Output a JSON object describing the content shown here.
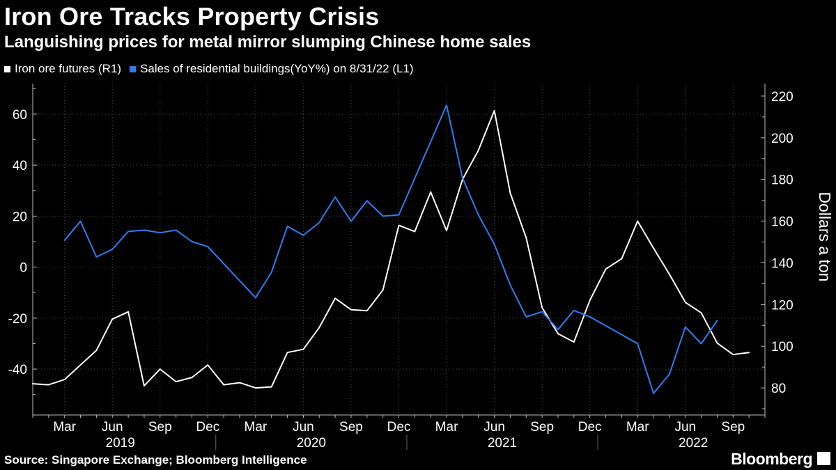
{
  "chart_data": {
    "type": "line",
    "title": "Iron Ore Tracks Property Crisis",
    "subtitle": "Languishing prices for metal mirror slumping Chinese home sales",
    "source": "Source: Singapore Exchange; Bloomberg Intelligence",
    "brand": "Bloomberg",
    "right_axis_label": "Dollars a ton",
    "left_axis": {
      "ylim": [
        -58,
        72
      ],
      "ticks": [
        60,
        40,
        20,
        0,
        -20,
        -40
      ],
      "labels": [
        "60",
        "40",
        "20",
        "0",
        "-20",
        "-40"
      ]
    },
    "right_axis": {
      "ylim": [
        67,
        226
      ],
      "ticks": [
        220,
        200,
        180,
        160,
        140,
        120,
        100,
        80
      ],
      "labels": [
        "220",
        "200",
        "180",
        "160",
        "140",
        "120",
        "100",
        "80"
      ]
    },
    "x_axis": {
      "range": [
        0,
        46
      ],
      "month_ticks": [
        {
          "m": 2,
          "label": "Mar"
        },
        {
          "m": 5,
          "label": "Jun"
        },
        {
          "m": 8,
          "label": "Sep"
        },
        {
          "m": 11,
          "label": "Dec"
        },
        {
          "m": 14,
          "label": "Mar"
        },
        {
          "m": 17,
          "label": "Jun"
        },
        {
          "m": 20,
          "label": "Sep"
        },
        {
          "m": 23,
          "label": "Dec"
        },
        {
          "m": 26,
          "label": "Mar"
        },
        {
          "m": 29,
          "label": "Jun"
        },
        {
          "m": 32,
          "label": "Sep"
        },
        {
          "m": 35,
          "label": "Dec"
        },
        {
          "m": 38,
          "label": "Mar"
        },
        {
          "m": 41,
          "label": "Jun"
        },
        {
          "m": 44,
          "label": "Sep"
        }
      ],
      "years": [
        {
          "m": 5.5,
          "label": "2019"
        },
        {
          "m": 17.5,
          "label": "2020"
        },
        {
          "m": 29.5,
          "label": "2021"
        },
        {
          "m": 41.5,
          "label": "2022"
        }
      ],
      "year_dividers": [
        11.5,
        23.5,
        35.5
      ]
    },
    "series": [
      {
        "name": "Iron ore futures (R1)",
        "axis": "right",
        "color": "#ffffff",
        "points": [
          [
            0,
            82
          ],
          [
            1,
            81.5
          ],
          [
            2,
            84
          ],
          [
            3,
            91
          ],
          [
            4,
            98
          ],
          [
            5,
            113
          ],
          [
            6,
            116.5
          ],
          [
            7,
            81
          ],
          [
            8,
            89
          ],
          [
            9,
            83
          ],
          [
            10,
            85
          ],
          [
            11,
            91
          ],
          [
            12,
            81.5
          ],
          [
            13,
            82.5
          ],
          [
            14,
            80
          ],
          [
            15,
            80.5
          ],
          [
            16,
            97
          ],
          [
            17,
            98.5
          ],
          [
            18,
            109
          ],
          [
            19,
            123
          ],
          [
            20,
            117.5
          ],
          [
            21,
            117
          ],
          [
            22,
            127
          ],
          [
            23,
            158
          ],
          [
            24,
            155
          ],
          [
            25,
            174
          ],
          [
            26,
            155.5
          ],
          [
            27,
            180
          ],
          [
            28,
            194
          ],
          [
            29,
            213
          ],
          [
            30,
            173.5
          ],
          [
            31,
            152
          ],
          [
            32,
            118.5
          ],
          [
            33,
            106
          ],
          [
            34,
            102
          ],
          [
            35,
            122
          ],
          [
            36,
            137
          ],
          [
            37,
            142
          ],
          [
            38,
            160
          ],
          [
            39,
            147
          ],
          [
            40,
            134.5
          ],
          [
            41,
            121
          ],
          [
            42,
            116
          ],
          [
            43,
            101.5
          ],
          [
            44,
            96
          ],
          [
            45,
            97
          ]
        ]
      },
      {
        "name": "Sales of residential buildings(YoY%) on 8/31/22 (L1)",
        "axis": "left",
        "color": "#2e7df6",
        "points": [
          [
            2,
            10.5
          ],
          [
            3,
            18
          ],
          [
            4,
            4
          ],
          [
            5,
            7
          ],
          [
            6,
            14
          ],
          [
            7,
            14.5
          ],
          [
            8,
            13.5
          ],
          [
            9,
            14.5
          ],
          [
            10,
            10
          ],
          [
            11,
            8
          ],
          [
            14,
            -12
          ],
          [
            15,
            -2
          ],
          [
            16,
            16
          ],
          [
            17,
            12.5
          ],
          [
            18,
            17.5
          ],
          [
            19,
            27.5
          ],
          [
            20,
            18
          ],
          [
            21,
            26
          ],
          [
            22,
            20
          ],
          [
            23,
            20.5
          ],
          [
            26,
            63.5
          ],
          [
            27,
            35
          ],
          [
            28,
            20.5
          ],
          [
            29,
            9
          ],
          [
            30,
            -7
          ],
          [
            31,
            -19.5
          ],
          [
            32,
            -17.5
          ],
          [
            33,
            -24.5
          ],
          [
            34,
            -17
          ],
          [
            35,
            -19.5
          ],
          [
            38,
            -30
          ],
          [
            39,
            -49.5
          ],
          [
            40,
            -42
          ],
          [
            41,
            -23.5
          ],
          [
            42,
            -30
          ],
          [
            43,
            -21
          ]
        ]
      }
    ]
  },
  "legend": [
    {
      "label": "Iron ore futures (R1)",
      "color": "#ffffff"
    },
    {
      "label": "Sales of residential buildings(YoY%) on 8/31/22 (L1)",
      "color": "#2e7df6"
    }
  ]
}
